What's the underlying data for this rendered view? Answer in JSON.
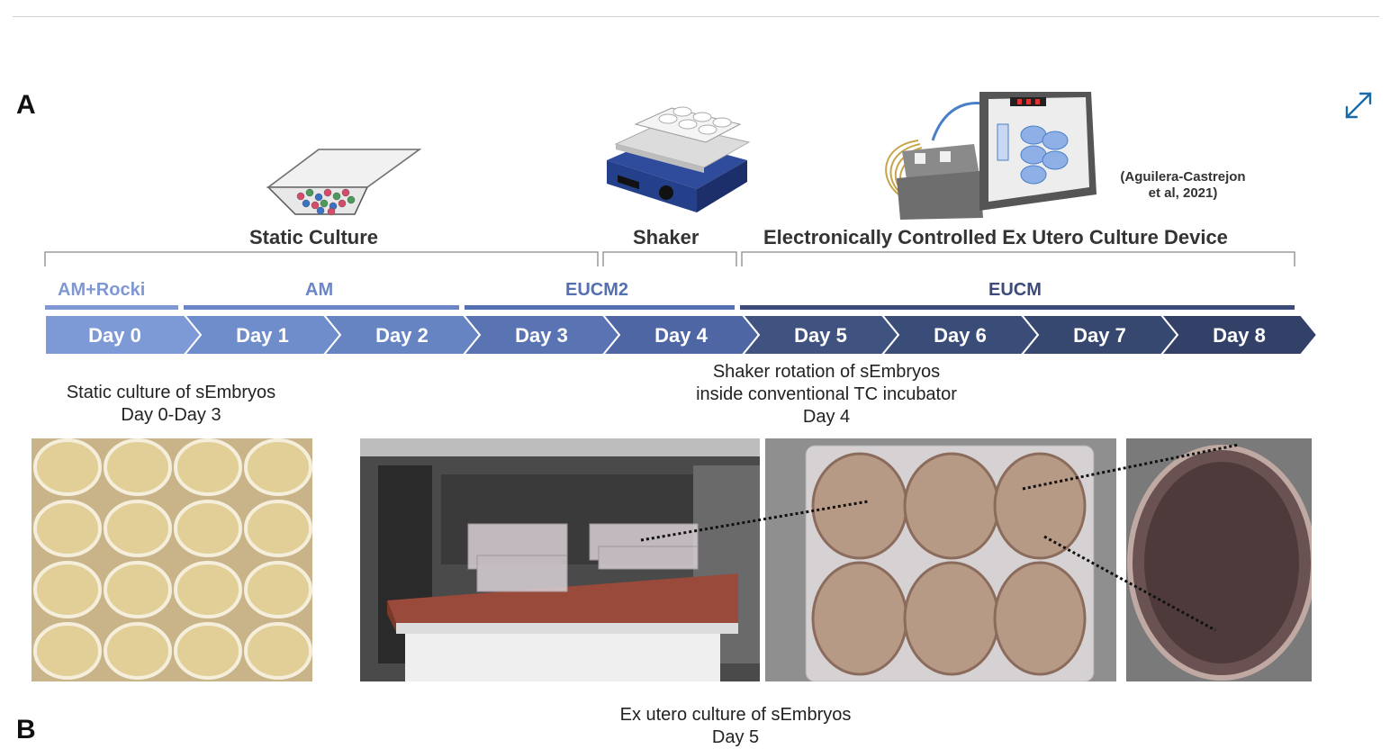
{
  "panels": {
    "a": "A",
    "b": "B"
  },
  "phases": {
    "static": "Static Culture",
    "shaker": "Shaker",
    "device": "Electronically Controlled Ex Utero Culture Device"
  },
  "citation": {
    "line1": "(Aguilera-Castrejon",
    "line2": "et al, 2021)"
  },
  "media": {
    "am_rocki": "AM+Rocki",
    "am": "AM",
    "eucm2": "EUCM2",
    "eucm": "EUCM"
  },
  "days": [
    "Day 0",
    "Day 1",
    "Day 2",
    "Day 3",
    "Day 4",
    "Day 5",
    "Day 6",
    "Day 7",
    "Day 8"
  ],
  "captions": {
    "static_line1": "Static culture of sEmbryos",
    "static_line2": "Day 0-Day 3",
    "shaker_line1": "Shaker rotation of sEmbryos",
    "shaker_line2": "inside conventional TC incubator",
    "shaker_line3": "Day 4",
    "exutero_line1": "Ex utero culture of sEmbryos",
    "exutero_line2": "Day 5"
  },
  "colors": {
    "day0": "#7e9ad6",
    "day1": "#6f8ccb",
    "day2": "#6683c2",
    "day3": "#5a73b3",
    "day4": "#4e66a4",
    "day5": "#3f5280",
    "day6": "#3a4c78",
    "day7": "#364770",
    "day8": "#334168",
    "medium_light": "#7f98d3",
    "medium_mid": "#5f78b6",
    "medium_dark": "#3c4b79"
  }
}
